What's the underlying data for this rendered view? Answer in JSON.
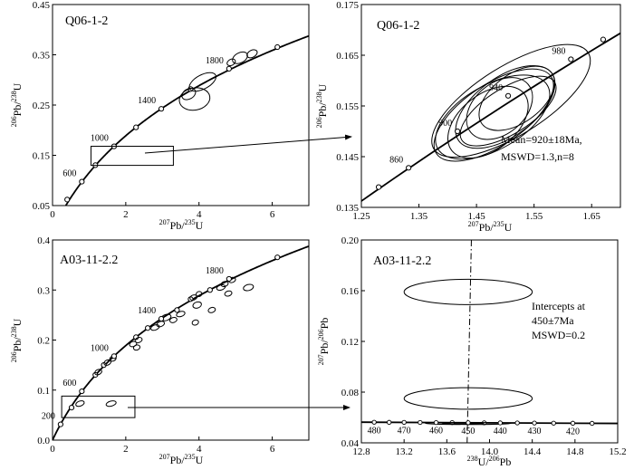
{
  "chart_data": [
    {
      "type": "scatter",
      "panel": "a",
      "title": "Q06-1-2",
      "xlabel": "207Pb/235U",
      "ylabel": "206Pb/238U",
      "xlim": [
        0,
        7
      ],
      "ylim": [
        0.05,
        0.45
      ],
      "xticks": [
        0,
        2,
        4,
        6
      ],
      "yticks": [
        0.05,
        0.15,
        0.25,
        0.35,
        0.45
      ],
      "xtick_labels": [
        "0",
        "2",
        "4",
        "6"
      ],
      "ytick_labels": [
        "0.05",
        "0.15",
        "0.25",
        "0.35",
        "0.45"
      ],
      "concordia_marks": [
        {
          "label": "600",
          "x": 0.8,
          "y": 0.0976
        },
        {
          "label": "1000",
          "x": 1.68,
          "y": 0.1678
        },
        {
          "label": "1400",
          "x": 2.97,
          "y": 0.2425
        },
        {
          "label": "1800",
          "x": 4.82,
          "y": 0.3223
        }
      ],
      "unlabeled_marks": [
        {
          "x": 0.4,
          "y": 0.062
        },
        {
          "x": 1.17,
          "y": 0.1304
        },
        {
          "x": 2.28,
          "y": 0.2056
        },
        {
          "x": 3.77,
          "y": 0.2818
        },
        {
          "x": 6.14,
          "y": 0.3653
        }
      ],
      "ellipses": [
        {
          "x": 3.88,
          "y": 0.262,
          "rx": 0.42,
          "ry": 0.022,
          "angle": 10
        },
        {
          "x": 3.72,
          "y": 0.272,
          "rx": 0.2,
          "ry": 0.01,
          "angle": 30
        },
        {
          "x": 4.1,
          "y": 0.296,
          "rx": 0.4,
          "ry": 0.014,
          "angle": 28
        },
        {
          "x": 5.12,
          "y": 0.344,
          "rx": 0.22,
          "ry": 0.01,
          "angle": 28
        },
        {
          "x": 5.45,
          "y": 0.352,
          "rx": 0.15,
          "ry": 0.007,
          "angle": 28
        },
        {
          "x": 4.88,
          "y": 0.335,
          "rx": 0.12,
          "ry": 0.006,
          "angle": 28
        }
      ],
      "inset_box": {
        "x0": 1.05,
        "x1": 3.3,
        "y0": 0.13,
        "y1": 0.168
      }
    },
    {
      "type": "scatter",
      "panel": "b",
      "title": "Q06-1-2",
      "xlabel": "207Pb/235U",
      "ylabel": "206Pb/238U",
      "xlim": [
        1.25,
        1.7
      ],
      "ylim": [
        0.135,
        0.175
      ],
      "xticks": [
        1.25,
        1.35,
        1.45,
        1.55,
        1.65
      ],
      "yticks": [
        0.135,
        0.145,
        0.155,
        0.165,
        0.175
      ],
      "xtick_labels": [
        "1.25",
        "1.35",
        "1.45",
        "1.55",
        "1.65"
      ],
      "ytick_labels": [
        "0.135",
        "0.145",
        "0.155",
        "0.165",
        "0.175"
      ],
      "concordia_marks": [
        {
          "label": "860",
          "x": 1.332,
          "y": 0.1428
        },
        {
          "label": "900",
          "x": 1.417,
          "y": 0.15
        },
        {
          "label": "940",
          "x": 1.505,
          "y": 0.157
        },
        {
          "label": "980",
          "x": 1.614,
          "y": 0.1642
        }
      ],
      "unlabeled_marks": [
        {
          "x": 1.28,
          "y": 0.139
        },
        {
          "x": 1.67,
          "y": 0.1681
        }
      ],
      "ellipses": [
        {
          "x": 1.51,
          "y": 0.156,
          "rx": 0.158,
          "ry": 0.0068,
          "angle": 32
        },
        {
          "x": 1.48,
          "y": 0.1532,
          "rx": 0.12,
          "ry": 0.006,
          "angle": 34
        },
        {
          "x": 1.5,
          "y": 0.1548,
          "rx": 0.1,
          "ry": 0.0058,
          "angle": 36
        },
        {
          "x": 1.47,
          "y": 0.1518,
          "rx": 0.08,
          "ry": 0.0055,
          "angle": 38
        },
        {
          "x": 1.49,
          "y": 0.1545,
          "rx": 0.065,
          "ry": 0.005,
          "angle": 40
        },
        {
          "x": 1.505,
          "y": 0.154,
          "rx": 0.095,
          "ry": 0.0045,
          "angle": 32
        },
        {
          "x": 1.478,
          "y": 0.1528,
          "rx": 0.11,
          "ry": 0.0063,
          "angle": 30
        },
        {
          "x": 1.52,
          "y": 0.1565,
          "rx": 0.075,
          "ry": 0.0048,
          "angle": 36
        }
      ],
      "annotation": [
        "Mean=920±18Ma,",
        "MSWD=1.3,n=8"
      ]
    },
    {
      "type": "scatter",
      "panel": "c",
      "title": "A03-11-2.2",
      "xlabel": "207Pb/235U",
      "ylabel": "206Pb/238U",
      "xlim": [
        0,
        7
      ],
      "ylim": [
        0,
        0.4
      ],
      "xticks": [
        0,
        2,
        4,
        6
      ],
      "yticks": [
        0,
        0.1,
        0.2,
        0.3,
        0.4
      ],
      "xtick_labels": [
        "0",
        "2",
        "4",
        "6"
      ],
      "ytick_labels": [
        "0.0",
        "0.1",
        "0.2",
        "0.3",
        "0.4"
      ],
      "concordia_marks": [
        {
          "label": "200",
          "x": 0.22,
          "y": 0.0315
        },
        {
          "label": "600",
          "x": 0.8,
          "y": 0.0976
        },
        {
          "label": "1000",
          "x": 1.68,
          "y": 0.1678
        },
        {
          "label": "1400",
          "x": 2.97,
          "y": 0.2425
        },
        {
          "label": "1800",
          "x": 4.82,
          "y": 0.3223
        }
      ],
      "unlabeled_marks": [
        {
          "x": 0.52,
          "y": 0.065
        },
        {
          "x": 1.17,
          "y": 0.1304
        },
        {
          "x": 1.4,
          "y": 0.15
        },
        {
          "x": 2.28,
          "y": 0.2056
        },
        {
          "x": 2.6,
          "y": 0.224
        },
        {
          "x": 3.4,
          "y": 0.26
        },
        {
          "x": 3.77,
          "y": 0.2818
        },
        {
          "x": 4.3,
          "y": 0.3
        },
        {
          "x": 6.14,
          "y": 0.3653
        }
      ],
      "ellipses": [
        {
          "x": 0.75,
          "y": 0.073,
          "rx": 0.12,
          "ry": 0.005,
          "angle": 20
        },
        {
          "x": 1.6,
          "y": 0.073,
          "rx": 0.14,
          "ry": 0.005,
          "angle": 15
        },
        {
          "x": 1.25,
          "y": 0.136,
          "rx": 0.1,
          "ry": 0.005,
          "angle": 25
        },
        {
          "x": 1.5,
          "y": 0.155,
          "rx": 0.1,
          "ry": 0.005,
          "angle": 25
        },
        {
          "x": 1.65,
          "y": 0.163,
          "rx": 0.09,
          "ry": 0.005,
          "angle": 25
        },
        {
          "x": 2.2,
          "y": 0.192,
          "rx": 0.1,
          "ry": 0.005,
          "angle": 20
        },
        {
          "x": 2.35,
          "y": 0.2,
          "rx": 0.1,
          "ry": 0.005,
          "angle": 20
        },
        {
          "x": 2.3,
          "y": 0.185,
          "rx": 0.09,
          "ry": 0.005,
          "angle": 20
        },
        {
          "x": 2.8,
          "y": 0.225,
          "rx": 0.12,
          "ry": 0.005,
          "angle": 20
        },
        {
          "x": 2.95,
          "y": 0.232,
          "rx": 0.11,
          "ry": 0.005,
          "angle": 20
        },
        {
          "x": 3.1,
          "y": 0.245,
          "rx": 0.14,
          "ry": 0.006,
          "angle": 18
        },
        {
          "x": 3.3,
          "y": 0.24,
          "rx": 0.1,
          "ry": 0.005,
          "angle": 18
        },
        {
          "x": 3.5,
          "y": 0.252,
          "rx": 0.12,
          "ry": 0.005,
          "angle": 18
        },
        {
          "x": 3.95,
          "y": 0.27,
          "rx": 0.12,
          "ry": 0.006,
          "angle": 18
        },
        {
          "x": 3.9,
          "y": 0.235,
          "rx": 0.09,
          "ry": 0.005,
          "angle": 20
        },
        {
          "x": 3.85,
          "y": 0.285,
          "rx": 0.1,
          "ry": 0.005,
          "angle": 20
        },
        {
          "x": 4.0,
          "y": 0.292,
          "rx": 0.08,
          "ry": 0.005,
          "angle": 20
        },
        {
          "x": 4.35,
          "y": 0.26,
          "rx": 0.1,
          "ry": 0.005,
          "angle": 18
        },
        {
          "x": 4.6,
          "y": 0.305,
          "rx": 0.12,
          "ry": 0.005,
          "angle": 18
        },
        {
          "x": 4.7,
          "y": 0.312,
          "rx": 0.1,
          "ry": 0.005,
          "angle": 18
        },
        {
          "x": 4.8,
          "y": 0.293,
          "rx": 0.1,
          "ry": 0.005,
          "angle": 18
        },
        {
          "x": 4.9,
          "y": 0.32,
          "rx": 0.1,
          "ry": 0.005,
          "angle": 18
        },
        {
          "x": 5.35,
          "y": 0.305,
          "rx": 0.14,
          "ry": 0.006,
          "angle": 15
        }
      ],
      "inset_box": {
        "x0": 0.25,
        "x1": 2.25,
        "y0": 0.045,
        "y1": 0.088
      }
    },
    {
      "type": "scatter",
      "panel": "d",
      "title": "A03-11-2.2",
      "xlabel": "238U/206Pb",
      "ylabel": "207Pb/206Pb",
      "xlim": [
        12.8,
        15.2
      ],
      "ylim": [
        0.04,
        0.2
      ],
      "xticks": [
        12.8,
        13.2,
        13.6,
        14.0,
        14.4,
        14.8,
        15.2
      ],
      "yticks": [
        0.04,
        0.08,
        0.12,
        0.16,
        0.2
      ],
      "xtick_labels": [
        "12.8",
        "13.2",
        "13.6",
        "14.0",
        "14.4",
        "14.8",
        "15.2"
      ],
      "ytick_labels": [
        "0.04",
        "0.08",
        "0.12",
        "0.16",
        "0.20"
      ],
      "tw_concordia": {
        "x0": 12.8,
        "y0": 0.0563,
        "x1": 15.2,
        "y1": 0.0553
      },
      "tw_marks": [
        {
          "label": "480",
          "x": 12.92
        },
        {
          "label": "470",
          "x": 13.2
        },
        {
          "label": "460",
          "x": 13.5
        },
        {
          "label": "450",
          "x": 13.8
        },
        {
          "label": "440",
          "x": 14.1
        },
        {
          "label": "430",
          "x": 14.42
        },
        {
          "label": "420",
          "x": 14.78
        }
      ],
      "tw_minor_marks": [
        13.06,
        13.35,
        13.65,
        13.95,
        14.26,
        14.6,
        14.96
      ],
      "ellipses": [
        {
          "x": 13.8,
          "y": 0.159,
          "rx": 0.6,
          "ry": 0.01,
          "angle": 0
        },
        {
          "x": 13.8,
          "y": 0.075,
          "rx": 0.6,
          "ry": 0.0085,
          "angle": 0
        },
        {
          "x": 13.8,
          "y": 0.0553,
          "rx": 0.4,
          "ry": 0.0008,
          "angle": 0
        },
        {
          "x": 13.75,
          "y": 0.0555,
          "rx": 0.2,
          "ry": 0.0006,
          "angle": 0
        }
      ],
      "intercept_line": {
        "x_top": 13.83,
        "x_bottom": 13.79
      },
      "annotation": [
        "Intercepts at",
        "450±7Ma",
        "MSWD=0.2"
      ]
    }
  ]
}
